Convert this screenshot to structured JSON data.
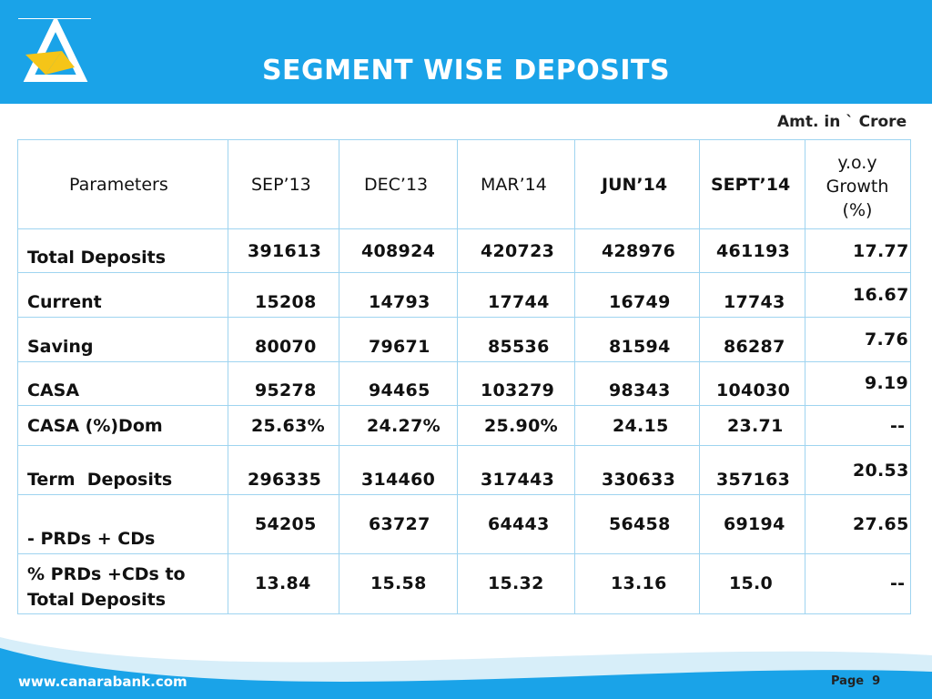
{
  "header": {
    "title": "SEGMENT WISE DEPOSITS",
    "amount_note": "Amt. in ` Crore"
  },
  "table": {
    "columns": [
      "Parameters",
      "SEP’13",
      "DEC’13",
      "MAR’14",
      "JUN’14",
      "SEPT’14",
      "y.o.y",
      "Growth",
      "(%)"
    ],
    "rows": [
      {
        "label": "Total Deposits",
        "values": [
          "391613",
          "408924",
          "420723",
          "428976",
          "461193"
        ],
        "growth": "17.77"
      },
      {
        "label": "Current",
        "values": [
          "15208",
          "14793",
          "17744",
          "16749",
          "17743"
        ],
        "growth": "16.67"
      },
      {
        "label": "Saving",
        "values": [
          "80070",
          "79671",
          "85536",
          "81594",
          "86287"
        ],
        "growth": "7.76"
      },
      {
        "label": "CASA",
        "values": [
          "95278",
          "94465",
          "103279",
          "98343",
          "104030"
        ],
        "growth": "9.19"
      },
      {
        "label": "CASA (%)Dom",
        "values": [
          "25.63%",
          "24.27%",
          "25.90%",
          "24.15",
          "23.71"
        ],
        "growth": "--"
      },
      {
        "label": "Term  Deposits",
        "values": [
          "296335",
          "314460",
          "317443",
          "330633",
          "357163"
        ],
        "growth": "20.53"
      },
      {
        "label": "- PRDs + CDs",
        "values": [
          "54205",
          "63727",
          "64443",
          "56458",
          "69194"
        ],
        "growth": "27.65"
      },
      {
        "label_line1": "% PRDs +CDs to",
        "label_line2": "Total Deposits",
        "values": [
          "13.84",
          "15.58",
          "15.32",
          "13.16",
          "15.0"
        ],
        "growth": "--"
      }
    ]
  },
  "footer": {
    "website": "www.canarabank.com",
    "page_label": "Page",
    "page_number": "9"
  },
  "colors": {
    "brand_blue": "#1aa3e8",
    "logo_yellow": "#f5c518",
    "grid": "#9fd4f0"
  }
}
